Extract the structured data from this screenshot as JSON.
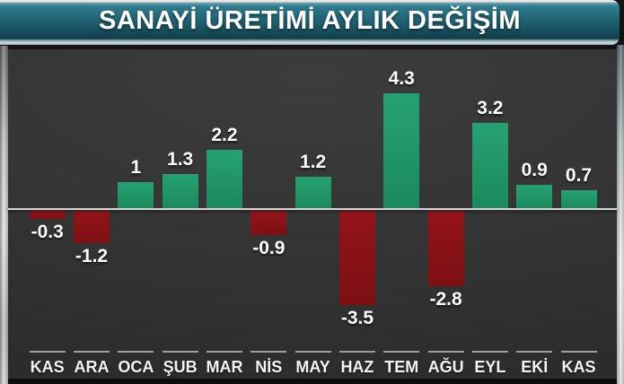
{
  "title": "SANAYİ ÜRETİMİ AYLIK DEĞİŞİM",
  "colors": {
    "banner_teal": "#1d5b6b",
    "positive": "#26a173",
    "positive_dark": "#1b8a5e",
    "negative": "#94141a",
    "negative_dark": "#7d0f13",
    "baseline": "#d3d7d7",
    "panel_background": "#343434",
    "label_text": "#fcfcfc"
  },
  "chart_data": {
    "type": "bar",
    "title": "SANAYİ ÜRETİMİ AYLIK DEĞİŞİM",
    "categories": [
      "KAS",
      "ARA",
      "OCA",
      "ŞUB",
      "MAR",
      "NİS",
      "MAY",
      "HAZ",
      "TEM",
      "AĞU",
      "EYL",
      "EKİ",
      "KAS"
    ],
    "values": [
      -0.3,
      -1.2,
      1,
      1.3,
      2.2,
      -0.9,
      1.2,
      -3.5,
      4.3,
      -2.8,
      3.2,
      0.9,
      0.7
    ],
    "value_labels": [
      "-0.3",
      "-1.2",
      "1",
      "1.3",
      "2.2",
      "-0.9",
      "1.2",
      "-3.5",
      "4.3",
      "-2.8",
      "3.2",
      "0.9",
      "0.7"
    ],
    "xlabel": "",
    "ylabel": "",
    "ylim": [
      -4.5,
      5.5
    ],
    "baseline_value": 0,
    "grid": false,
    "legend": false,
    "positive_color": "#26a173",
    "negative_color": "#94141a"
  }
}
